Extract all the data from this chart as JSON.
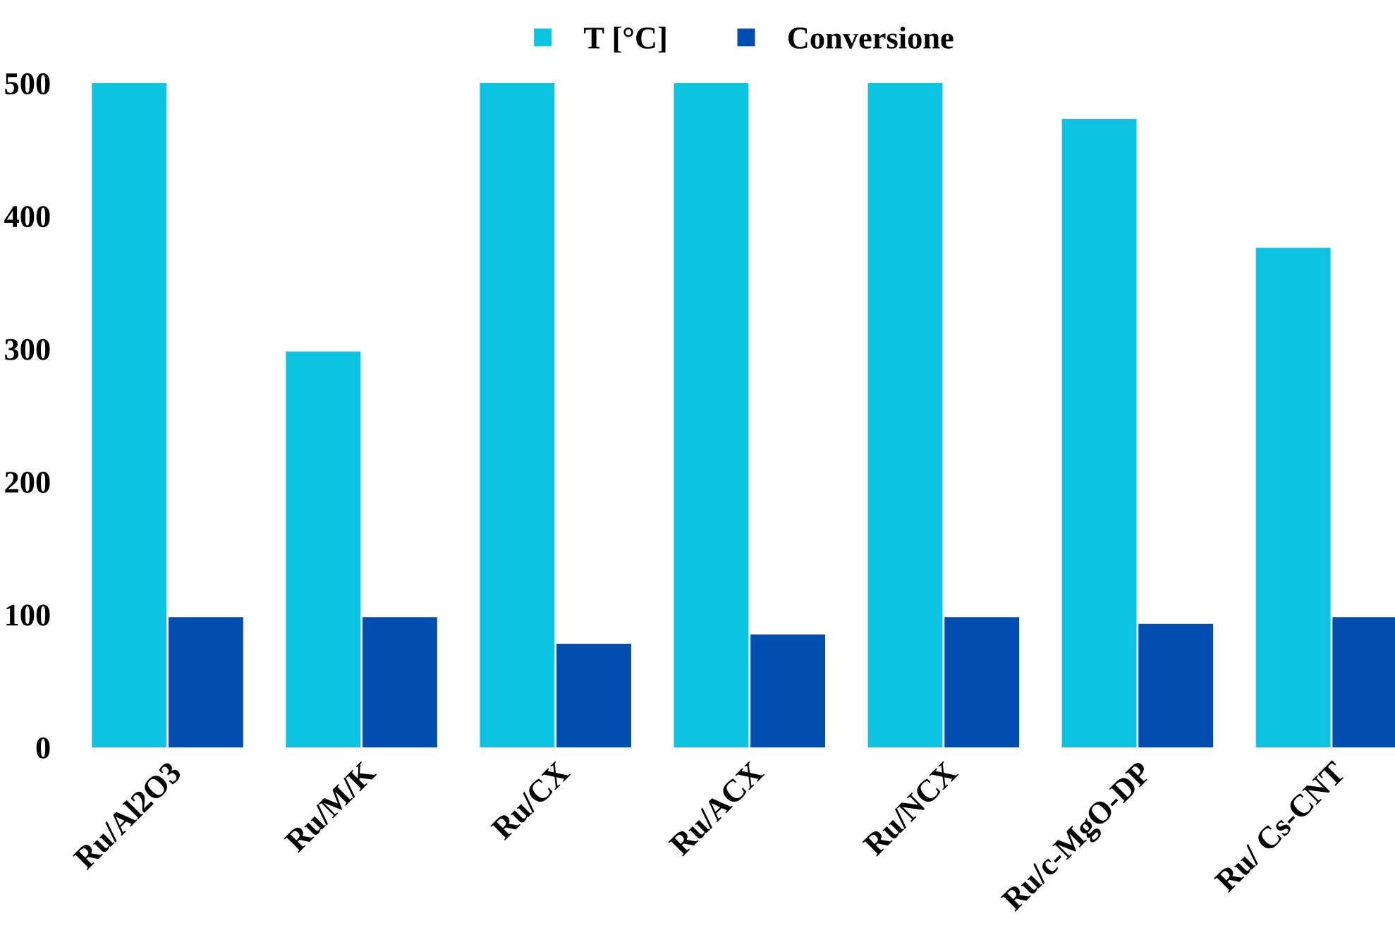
{
  "chart_data": {
    "type": "bar",
    "categories": [
      "Ru/Al2O3",
      "Ru/M/K",
      "Ru/CX",
      "Ru/ACX",
      "Ru/NCX",
      "Ru/c-MgO-DP",
      "Ru/ Cs-CNT"
    ],
    "series": [
      {
        "name": "T [°C]",
        "color": "#0ec2e2",
        "values": [
          500,
          298,
          500,
          500,
          500,
          473,
          376
        ]
      },
      {
        "name": "Conversione",
        "color": "#024eae",
        "values": [
          98,
          98,
          78,
          85,
          98,
          93,
          98
        ]
      }
    ],
    "ylim": [
      0,
      500
    ],
    "yticks": [
      0,
      100,
      200,
      300,
      400,
      500
    ],
    "grid": false,
    "legend": "top"
  }
}
